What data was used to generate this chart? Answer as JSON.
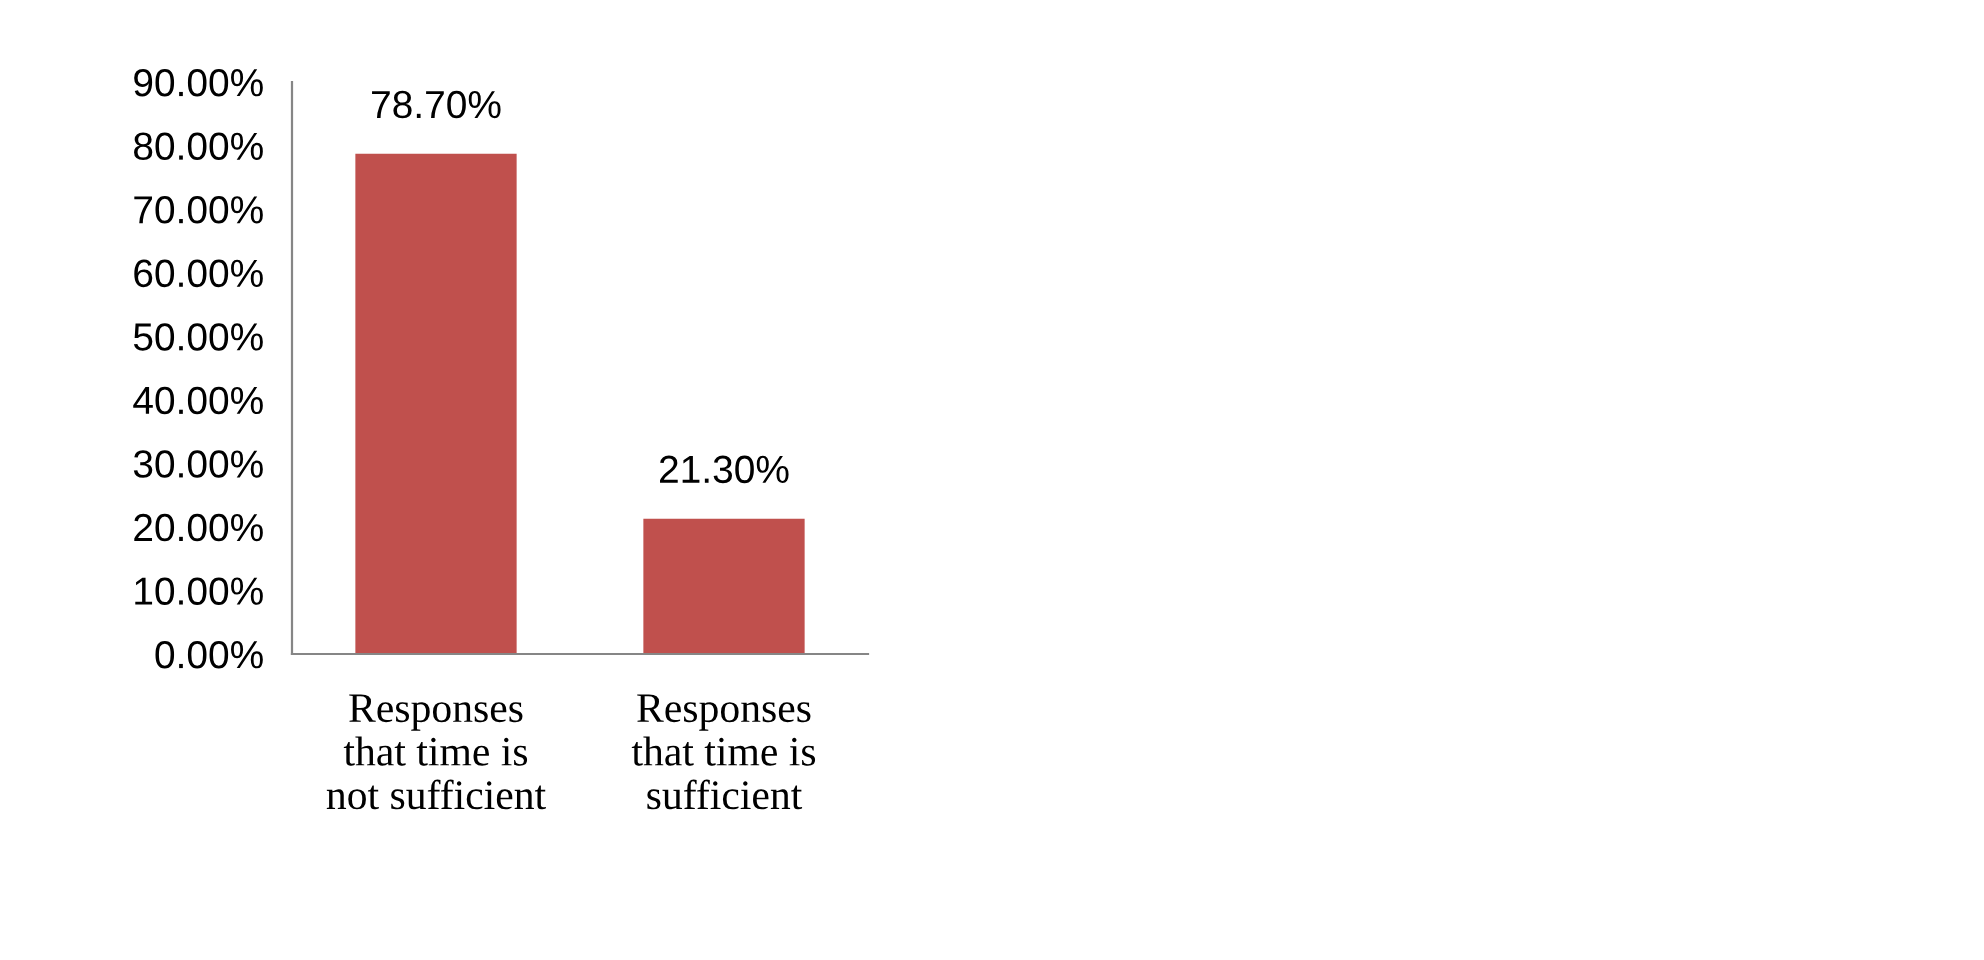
{
  "chart_data": {
    "type": "bar",
    "categories": [
      "Responses\nthat time is\nnot sufficient",
      "Responses\nthat time is\nsufficient"
    ],
    "values": [
      78.7,
      21.3
    ],
    "color": "#c0504d",
    "value_labels": [
      "78.70%",
      "21.30%"
    ],
    "ylim": [
      0,
      90
    ],
    "yticks": [
      {
        "value": 0,
        "label": "0.00%"
      },
      {
        "value": 10,
        "label": "10.00%"
      },
      {
        "value": 20,
        "label": "20.00%"
      },
      {
        "value": 30,
        "label": "30.00%"
      },
      {
        "value": 40,
        "label": "40.00%"
      },
      {
        "value": 50,
        "label": "50.00%"
      },
      {
        "value": 60,
        "label": "60.00%"
      },
      {
        "value": 70,
        "label": "70.00%"
      },
      {
        "value": 80,
        "label": "80.00%"
      },
      {
        "value": 90,
        "label": "90.00%"
      }
    ],
    "grid": false,
    "legend": false
  }
}
